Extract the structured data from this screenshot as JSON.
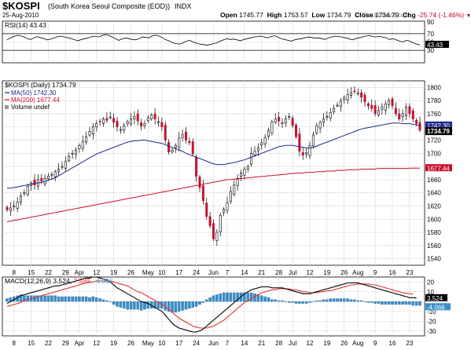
{
  "header": {
    "symbol": "$KOSPI",
    "company": "(South Korea Seoul Composite (EOD))",
    "exchange": "INDX",
    "date": "25-Aug-2010",
    "brand": "© StockCharts.com",
    "open_label": "Open",
    "open": "1745.77",
    "high_label": "High",
    "high": "1753.57",
    "low_label": "Low",
    "low": "1734.79",
    "close_label": "Close",
    "close": "1734.79",
    "chg_label": "Chg",
    "chg": "-25.74 (-1.46%)"
  },
  "colors": {
    "up": "#ffffff",
    "down": "#c8102e",
    "ma50": "#1c2a8c",
    "ma200": "#c8102e",
    "macd": "#000000",
    "signal": "#d9382e",
    "hist": "#3a8fc9",
    "grid": "#d8d8d8"
  },
  "chart_data": [
    {
      "type": "line",
      "title": "RSI(14) 43.43",
      "legend": "RSI(14) 43.43",
      "ylim": [
        0,
        100
      ],
      "ticks": [
        30,
        70
      ],
      "reference_lines": [
        30,
        70
      ],
      "last_value_label": "43.43",
      "values": [
        55,
        60,
        63,
        66,
        65,
        62,
        58,
        56,
        60,
        63,
        60,
        58,
        55,
        57,
        60,
        63,
        64,
        62,
        60,
        58,
        55,
        53,
        56,
        58,
        60,
        63,
        64,
        62,
        65,
        68,
        66,
        62,
        58,
        54,
        57,
        60,
        58,
        56,
        55,
        58,
        62,
        61,
        60,
        65,
        66,
        64,
        60,
        55,
        52,
        48,
        46,
        45,
        48,
        52,
        54,
        50,
        47,
        45,
        44,
        42,
        44,
        46,
        48,
        52,
        55,
        58,
        56,
        57,
        55,
        53,
        56,
        58,
        60,
        62,
        63,
        64,
        62,
        60,
        63,
        65,
        62,
        58,
        56,
        54,
        52,
        55,
        57,
        58,
        60,
        62,
        61,
        59,
        60,
        58,
        56,
        60,
        62,
        64,
        63,
        62,
        60,
        58,
        55,
        58,
        60,
        62,
        64,
        66,
        63,
        62,
        64,
        62,
        60,
        56,
        58,
        55,
        52,
        50,
        54,
        52,
        48,
        45,
        43
      ]
    },
    {
      "type": "candlestick",
      "title": "$KOSPI (Daily) 1734.79",
      "ylim": [
        1530,
        1810
      ],
      "y_ticks": [
        1540,
        1560,
        1580,
        1600,
        1620,
        1640,
        1660,
        1680,
        1700,
        1720,
        1740,
        1760,
        1780,
        1800
      ],
      "x_ticks": [
        "8",
        "15",
        "22",
        "29",
        "Apr",
        "12",
        "19",
        "26",
        "May",
        "10",
        "17",
        "24",
        "Jun",
        "7",
        "14",
        "21",
        "28",
        "Jul",
        "12",
        "19",
        "26",
        "Aug",
        "9",
        "16",
        "23"
      ],
      "legend": [
        "$KOSPI (Daily) 1734.79",
        "MA(50) 1742.30",
        "MA(200) 1677.44",
        "Volume undef"
      ],
      "last_labels": {
        "ma50": "1742.30",
        "close": "1734.79",
        "ma200": "1677.44"
      },
      "close": [
        1614,
        1617,
        1620,
        1626,
        1635,
        1640,
        1650,
        1655,
        1652,
        1660,
        1658,
        1662,
        1665,
        1668,
        1672,
        1676,
        1680,
        1688,
        1695,
        1700,
        1705,
        1712,
        1718,
        1725,
        1733,
        1740,
        1745,
        1748,
        1752,
        1750,
        1755,
        1747,
        1740,
        1736,
        1742,
        1748,
        1752,
        1756,
        1749,
        1741,
        1745,
        1754,
        1758,
        1752,
        1748,
        1740,
        1720,
        1702,
        1705,
        1712,
        1723,
        1728,
        1720,
        1716,
        1699,
        1665,
        1648,
        1628,
        1604,
        1590,
        1570,
        1580,
        1606,
        1615,
        1625,
        1642,
        1652,
        1662,
        1670,
        1676,
        1680,
        1700,
        1703,
        1708,
        1716,
        1724,
        1735,
        1748,
        1752,
        1749,
        1746,
        1752,
        1756,
        1742,
        1725,
        1703,
        1697,
        1701,
        1712,
        1728,
        1742,
        1747,
        1752,
        1756,
        1762,
        1768,
        1773,
        1780,
        1785,
        1789,
        1792,
        1794,
        1792,
        1785,
        1778,
        1772,
        1768,
        1760,
        1765,
        1770,
        1775,
        1780,
        1772,
        1760,
        1752,
        1760,
        1770,
        1760,
        1752,
        1745,
        1735
      ],
      "ma50": [
        1647,
        1647,
        1648,
        1649,
        1650,
        1651,
        1652,
        1653,
        1654,
        1655,
        1656,
        1657,
        1659,
        1661,
        1663,
        1666,
        1669,
        1672,
        1675,
        1678,
        1681,
        1684,
        1687,
        1690,
        1693,
        1696,
        1699,
        1701,
        1703,
        1705,
        1707,
        1709,
        1711,
        1713,
        1715,
        1717,
        1718,
        1719,
        1719,
        1720,
        1720,
        1719,
        1718,
        1717,
        1716,
        1715,
        1713,
        1711,
        1709,
        1707,
        1705,
        1703,
        1700,
        1698,
        1696,
        1694,
        1692,
        1690,
        1688,
        1686,
        1684,
        1683,
        1683,
        1683,
        1684,
        1685,
        1686,
        1687,
        1689,
        1690,
        1692,
        1694,
        1696,
        1698,
        1700,
        1702,
        1704,
        1706,
        1708,
        1710,
        1711,
        1712,
        1712,
        1712,
        1711,
        1710,
        1709,
        1708,
        1708,
        1709,
        1711,
        1713,
        1715,
        1717,
        1719,
        1721,
        1723,
        1725,
        1727,
        1729,
        1731,
        1733,
        1735,
        1737,
        1738,
        1739,
        1740,
        1741,
        1742,
        1743,
        1744,
        1745,
        1746,
        1746,
        1746,
        1745,
        1745,
        1745,
        1744,
        1743,
        1742.3
      ],
      "ma200": [
        1596,
        1597,
        1598,
        1599,
        1600,
        1601,
        1602,
        1603,
        1604,
        1605,
        1606,
        1607,
        1608,
        1609,
        1610,
        1611,
        1612,
        1613,
        1614,
        1615,
        1616,
        1617,
        1618,
        1619,
        1620,
        1621,
        1622,
        1623,
        1624,
        1625,
        1626,
        1627,
        1628,
        1629,
        1630,
        1631,
        1632,
        1633,
        1634,
        1635,
        1636,
        1637,
        1638,
        1639,
        1640,
        1641,
        1642,
        1643,
        1644,
        1645,
        1646,
        1647,
        1648,
        1649,
        1650,
        1651,
        1652,
        1653,
        1654,
        1655,
        1656,
        1657,
        1658,
        1659,
        1660,
        1660,
        1661,
        1661,
        1662,
        1662,
        1663,
        1663,
        1664,
        1664,
        1665,
        1665,
        1666,
        1666,
        1667,
        1667,
        1668,
        1668,
        1669,
        1669,
        1670,
        1670,
        1670,
        1671,
        1671,
        1671,
        1672,
        1672,
        1672,
        1673,
        1673,
        1673,
        1674,
        1674,
        1674,
        1675,
        1675,
        1675,
        1675,
        1676,
        1676,
        1676,
        1676,
        1676,
        1677,
        1677,
        1677,
        1677,
        1677,
        1677,
        1677,
        1677,
        1677.2,
        1677.3,
        1677.4,
        1677.4,
        1677.44
      ]
    },
    {
      "type": "line",
      "title": "MACD(12,26,9) 3.524, 7.589, -4.066",
      "ylim": [
        -35,
        25
      ],
      "y_ticks": [
        -30,
        -20,
        -10,
        0,
        10,
        20
      ],
      "x_ticks": [
        "8",
        "15",
        "22",
        "29",
        "Apr",
        "12",
        "19",
        "26",
        "May",
        "10",
        "17",
        "24",
        "Jun",
        "7",
        "14",
        "21",
        "28",
        "Jul",
        "12",
        "19",
        "26",
        "Aug",
        "9",
        "16",
        "23"
      ],
      "legend": {
        "label": "MACD(12,26,9)",
        "macd": "3.524",
        "signal": "7.589",
        "hist": "-4.066"
      },
      "last_labels": {
        "macd": "3.524",
        "hist": "-4.066"
      },
      "series": [
        {
          "name": "MACD",
          "values": [
            -2,
            0,
            2,
            4,
            6,
            7,
            8,
            9,
            10,
            11,
            12,
            13,
            14,
            15,
            16,
            16,
            17,
            18,
            19,
            20,
            21,
            22,
            23,
            24,
            24,
            25,
            25,
            24,
            23,
            22,
            20,
            17,
            14,
            12,
            10,
            8,
            6,
            4,
            2,
            0,
            -1,
            -2,
            -4,
            -6,
            -8,
            -10,
            -14,
            -18,
            -22,
            -25,
            -27,
            -28,
            -29,
            -30,
            -31,
            -31,
            -30,
            -28,
            -25,
            -22,
            -19,
            -16,
            -13,
            -10,
            -7,
            -4,
            -1,
            2,
            5,
            8,
            10,
            12,
            13,
            14,
            15,
            15,
            15,
            14,
            14,
            14,
            14,
            13,
            12,
            11,
            10,
            9,
            8,
            8,
            8,
            9,
            10,
            11,
            12,
            13,
            14,
            15,
            16,
            17,
            18,
            19,
            19,
            19,
            19,
            18,
            17,
            16,
            15,
            14,
            13,
            12,
            11,
            10,
            9,
            8,
            7,
            6,
            5,
            4,
            4,
            3.524
          ]
        },
        {
          "name": "Signal",
          "values": [
            -5,
            -4,
            -3,
            -2,
            -1,
            1,
            2,
            3,
            4,
            5,
            6,
            7,
            8,
            9,
            10,
            11,
            12,
            13,
            14,
            15,
            16,
            17,
            18,
            19,
            20,
            20,
            21,
            21,
            21,
            21,
            20,
            20,
            19,
            18,
            17,
            16,
            14,
            12,
            10,
            9,
            7,
            5,
            3,
            1,
            -1,
            -3,
            -5,
            -8,
            -11,
            -14,
            -17,
            -19,
            -21,
            -23,
            -25,
            -26,
            -27,
            -27,
            -27,
            -26,
            -25,
            -23,
            -21,
            -19,
            -16,
            -13,
            -10,
            -7,
            -4,
            -1,
            1,
            3,
            5,
            7,
            9,
            10,
            11,
            12,
            12,
            13,
            13,
            13,
            13,
            12,
            12,
            11,
            10,
            10,
            9,
            9,
            9,
            10,
            10,
            11,
            11,
            12,
            13,
            14,
            15,
            16,
            17,
            17,
            18,
            18,
            18,
            18,
            17,
            17,
            16,
            15,
            14,
            13,
            12,
            11,
            10,
            9,
            8.5,
            8,
            7.589
          ]
        },
        {
          "name": "Histogram",
          "values": [
            3,
            4,
            5,
            6,
            7,
            6,
            6,
            6,
            6,
            6,
            6,
            6,
            6,
            6,
            6,
            5,
            5,
            5,
            5,
            5,
            5,
            5,
            5,
            5,
            4,
            5,
            4,
            3,
            2,
            1,
            0,
            -3,
            -5,
            -6,
            -7,
            -8,
            -8,
            -8,
            -8,
            -9,
            -8,
            -7,
            -7,
            -7,
            -7,
            -7,
            -9,
            -10,
            -11,
            -11,
            -10,
            -9,
            -8,
            -7,
            -6,
            -5,
            -3,
            -1,
            2,
            4,
            6,
            7,
            8,
            9,
            9,
            9,
            9,
            9,
            9,
            9,
            9,
            9,
            8,
            7,
            6,
            5,
            4,
            2,
            2,
            1,
            1,
            0,
            -1,
            -1,
            -2,
            -2,
            -2,
            -2,
            -1,
            0,
            1,
            1,
            2,
            2,
            3,
            3,
            3,
            3,
            3,
            3,
            2,
            2,
            1,
            1,
            0,
            -1,
            -1,
            -2,
            -2,
            -3,
            -3,
            -3,
            -3,
            -3,
            -3,
            -3,
            -3,
            -3,
            -4,
            -4,
            -4.066
          ]
        }
      ]
    }
  ]
}
